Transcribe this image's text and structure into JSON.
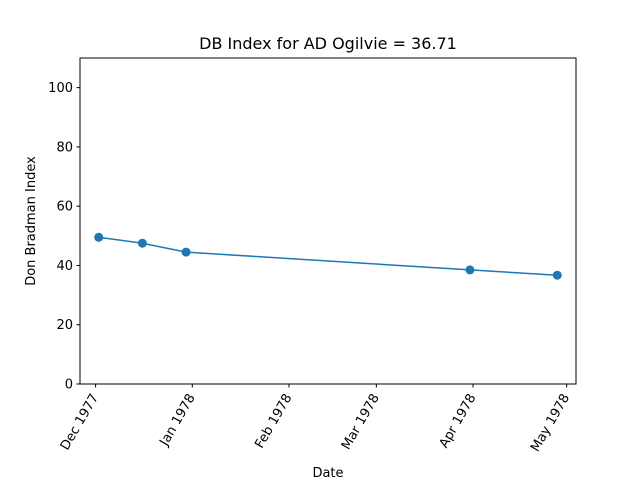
{
  "chart_data": {
    "type": "line",
    "title": "DB Index for AD Ogilvie = 36.71",
    "xlabel": "Date",
    "ylabel": "Don Bradman Index",
    "x": [
      "1977-12-02",
      "1977-12-16",
      "1977-12-30",
      "1978-03-31",
      "1978-04-28"
    ],
    "series": [
      {
        "values": [
          49.5,
          47.5,
          44.5,
          38.5,
          36.71
        ],
        "color": "#1f77b4",
        "marker": "circle"
      }
    ],
    "xlim": [
      "1977-11-26",
      "1978-05-04"
    ],
    "ylim": [
      0,
      110
    ],
    "xticks": [
      {
        "date": "1977-12-01",
        "label": "Dec 1977"
      },
      {
        "date": "1978-01-01",
        "label": "Jan 1978"
      },
      {
        "date": "1978-02-01",
        "label": "Feb 1978"
      },
      {
        "date": "1978-03-01",
        "label": "Mar 1978"
      },
      {
        "date": "1978-04-01",
        "label": "Apr 1978"
      },
      {
        "date": "1978-05-01",
        "label": "May 1978"
      }
    ],
    "yticks": [
      0,
      20,
      40,
      60,
      80,
      100
    ],
    "grid": false,
    "legend": "none"
  }
}
